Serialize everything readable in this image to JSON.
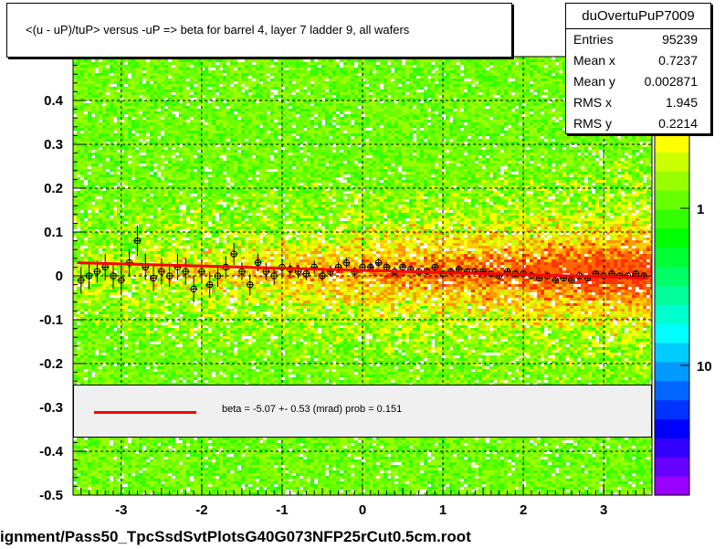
{
  "title": "<(u - uP)/tuP> versus  -uP => beta for barrel 4, layer 7 ladder 9, all wafers",
  "stats": {
    "name": "duOvertuPuP7009",
    "rows": [
      {
        "label": "Entries",
        "value": "95239"
      },
      {
        "label": "Mean x",
        "value": "0.7237"
      },
      {
        "label": "Mean y",
        "value": "0.002871"
      },
      {
        "label": "RMS x",
        "value": "1.945"
      },
      {
        "label": "RMS y",
        "value": "0.2214"
      }
    ]
  },
  "legend": {
    "fit_text": "beta =   -5.07 +-  0.53 (mrad) prob = 0.151",
    "fit_color": "#ff0000"
  },
  "footer": "ignment/Pass50_TpcSsdSvtPlotsG40G073NFP25rCut0.5cm.root",
  "chart_data": {
    "type": "scatter",
    "title": "<(u - uP)/tuP> versus  -uP => beta for barrel 4, layer 7 ladder 9, all wafers",
    "xlim": [
      -3.6,
      3.6
    ],
    "ylim": [
      -0.5,
      0.5
    ],
    "x_ticks": [
      -3,
      -2,
      -1,
      0,
      1,
      2,
      3
    ],
    "x_tick_labels": [
      "-3",
      "-2",
      "-1",
      "0",
      "1",
      "2",
      "3"
    ],
    "y_ticks": [
      -0.5,
      -0.4,
      -0.3,
      -0.2,
      -0.1,
      0,
      0.1,
      0.2,
      0.3,
      0.4
    ],
    "y_tick_labels": [
      "-0.5",
      "-0.4",
      "-0.3",
      "-0.2",
      "-0.1",
      "0",
      "0.1",
      "0.2",
      "0.3",
      "0.4"
    ],
    "grid": true,
    "colorbar": {
      "scale": "log",
      "tick_labels": [
        "1",
        "10"
      ]
    },
    "profile_points": {
      "x": [
        -3.5,
        -3.4,
        -3.3,
        -3.2,
        -3.1,
        -3.0,
        -2.9,
        -2.8,
        -2.7,
        -2.6,
        -2.5,
        -2.4,
        -2.3,
        -2.2,
        -2.1,
        -2.0,
        -1.9,
        -1.8,
        -1.7,
        -1.6,
        -1.5,
        -1.4,
        -1.3,
        -1.2,
        -1.1,
        -1.0,
        -0.9,
        -0.8,
        -0.7,
        -0.6,
        -0.5,
        -0.4,
        -0.3,
        -0.2,
        -0.1,
        0.0,
        0.1,
        0.2,
        0.3,
        0.4,
        0.5,
        0.6,
        0.7,
        0.8,
        0.9,
        1.0,
        1.1,
        1.2,
        1.3,
        1.4,
        1.5,
        1.6,
        1.7,
        1.8,
        1.9,
        2.0,
        2.1,
        2.2,
        2.3,
        2.4,
        2.5,
        2.6,
        2.7,
        2.8,
        2.9,
        3.0,
        3.1,
        3.2,
        3.3,
        3.4,
        3.5
      ],
      "y": [
        -0.01,
        0.0,
        0.01,
        0.02,
        0.0,
        -0.01,
        0.03,
        0.08,
        0.02,
        -0.005,
        0.01,
        0.0,
        0.02,
        0.01,
        -0.03,
        0.01,
        -0.02,
        0.0,
        0.02,
        0.05,
        0.01,
        -0.02,
        0.03,
        0.01,
        0.0,
        0.02,
        0.015,
        0.01,
        0.005,
        0.02,
        0.0,
        0.01,
        0.02,
        0.03,
        0.01,
        0.02,
        0.02,
        0.03,
        0.02,
        0.01,
        0.02,
        0.015,
        0.01,
        0.01,
        0.02,
        0.005,
        0.01,
        0.015,
        0.01,
        0.01,
        0.01,
        0.005,
        0.0,
        0.01,
        0.005,
        0.005,
        0.0,
        -0.005,
        0.0,
        -0.01,
        -0.005,
        -0.01,
        0.0,
        -0.005,
        0.005,
        0.0,
        0.005,
        0.0,
        0.0,
        0.005,
        0.0
      ],
      "err": [
        0.03,
        0.03,
        0.025,
        0.03,
        0.03,
        0.03,
        0.03,
        0.035,
        0.03,
        0.03,
        0.03,
        0.025,
        0.03,
        0.03,
        0.03,
        0.025,
        0.03,
        0.025,
        0.025,
        0.025,
        0.02,
        0.025,
        0.02,
        0.02,
        0.02,
        0.02,
        0.015,
        0.015,
        0.015,
        0.015,
        0.012,
        0.012,
        0.012,
        0.012,
        0.01,
        0.01,
        0.01,
        0.01,
        0.01,
        0.01,
        0.008,
        0.008,
        0.008,
        0.008,
        0.008,
        0.007,
        0.007,
        0.007,
        0.007,
        0.007,
        0.006,
        0.006,
        0.006,
        0.006,
        0.006,
        0.006,
        0.006,
        0.006,
        0.006,
        0.006,
        0.006,
        0.006,
        0.006,
        0.006,
        0.006,
        0.006,
        0.007,
        0.007,
        0.007,
        0.008,
        0.008
      ]
    },
    "fit_line": {
      "x": [
        -3.55,
        3.55
      ],
      "y": [
        0.03,
        -0.005
      ],
      "color": "#ff0000"
    }
  }
}
